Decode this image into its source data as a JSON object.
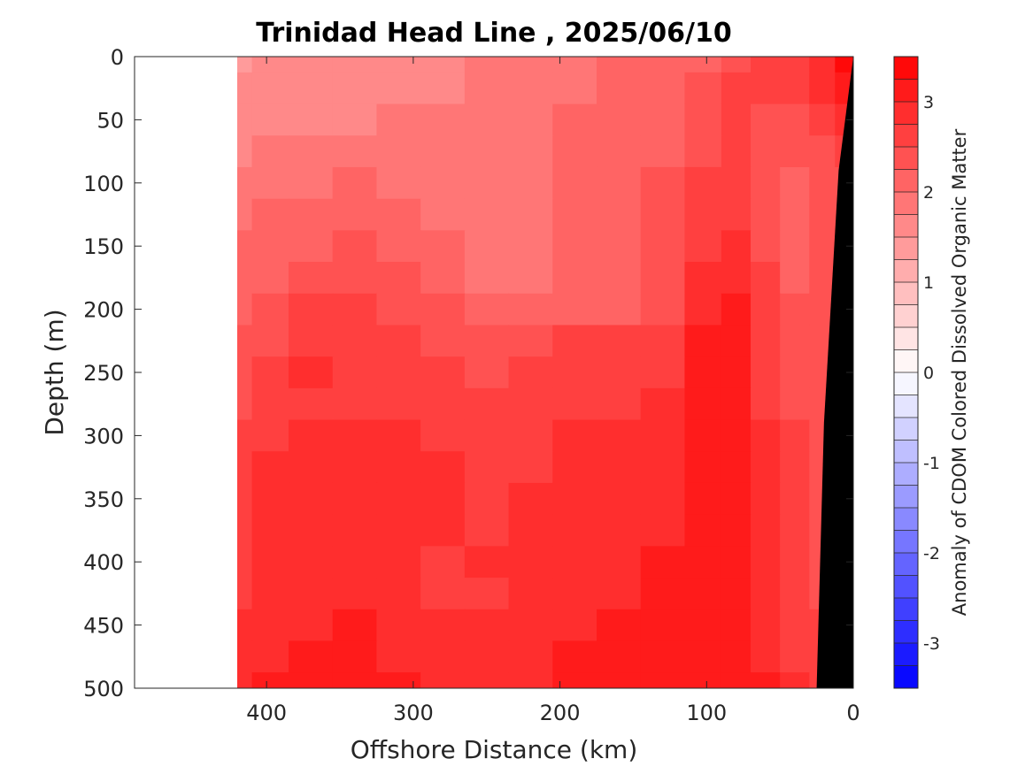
{
  "chart_data": {
    "type": "heatmap",
    "title": "Trinidad Head Line , 2025/06/10",
    "xlabel": "Offshore Distance (km)",
    "ylabel": "Depth (m)",
    "colorbar_label": "Anomaly of CDOM Colored Dissolved Organic Matter",
    "xlim": [
      490,
      0
    ],
    "ylim": [
      500,
      0
    ],
    "x_reversed": true,
    "y_reversed": true,
    "x_ticks": [
      400,
      300,
      200,
      100,
      0
    ],
    "x_tick_labels": [
      "400",
      "300",
      "200",
      "100",
      "0"
    ],
    "y_ticks": [
      0,
      50,
      100,
      150,
      200,
      250,
      300,
      350,
      400,
      450,
      500
    ],
    "y_tick_labels": [
      "0",
      "50",
      "100",
      "150",
      "200",
      "250",
      "300",
      "350",
      "400",
      "450",
      "500"
    ],
    "colorbar": {
      "range": [
        -3.5,
        3.5
      ],
      "step": 0.25,
      "ticks": [
        -3,
        -2,
        -1,
        0,
        1,
        2,
        3
      ],
      "tick_labels": [
        "-3",
        "-2",
        "-1",
        "0",
        "1",
        "2",
        "3"
      ],
      "min_color": "#0000ff",
      "mid_color": "#ffffff",
      "max_color": "#ff0000"
    },
    "data_extent_x": [
      420,
      0
    ],
    "bathymetry_color": "#000000",
    "bathymetry": [
      [
        0,
        0
      ],
      [
        10,
        90
      ],
      [
        20,
        290
      ],
      [
        25,
        500
      ],
      [
        0,
        500
      ]
    ],
    "x": [
      420,
      400,
      370,
      340,
      310,
      280,
      250,
      220,
      190,
      160,
      130,
      100,
      80,
      60,
      40,
      20,
      5
    ],
    "y": [
      0,
      25,
      50,
      75,
      100,
      125,
      150,
      175,
      200,
      225,
      250,
      275,
      300,
      325,
      350,
      375,
      400,
      425,
      450,
      475,
      500
    ],
    "values": [
      [
        1.4,
        1.5,
        1.6,
        1.7,
        1.7,
        1.7,
        1.8,
        1.9,
        1.9,
        2.0,
        2.0,
        2.2,
        2.4,
        2.5,
        2.6,
        2.9,
        3.3
      ],
      [
        1.5,
        1.6,
        1.6,
        1.7,
        1.7,
        1.7,
        1.8,
        1.9,
        1.9,
        2.0,
        2.1,
        2.3,
        2.7,
        2.5,
        2.5,
        2.8,
        3.0
      ],
      [
        1.6,
        1.7,
        1.7,
        1.7,
        1.8,
        1.8,
        1.8,
        1.9,
        2.0,
        2.0,
        2.1,
        2.4,
        2.5,
        2.4,
        2.4,
        2.6,
        2.8
      ],
      [
        1.7,
        1.8,
        1.8,
        1.9,
        1.8,
        1.8,
        1.8,
        1.9,
        2.0,
        2.1,
        2.2,
        2.4,
        2.5,
        2.3,
        2.3,
        2.4,
        2.6
      ],
      [
        1.8,
        1.9,
        1.9,
        2.0,
        1.9,
        1.8,
        1.8,
        1.9,
        2.0,
        2.1,
        2.3,
        2.5,
        2.5,
        2.3,
        2.2,
        2.3,
        2.4
      ],
      [
        1.9,
        2.0,
        2.0,
        2.1,
        2.0,
        1.9,
        1.8,
        1.9,
        2.0,
        2.1,
        2.3,
        2.6,
        2.6,
        2.3,
        2.2,
        2.3,
        2.3
      ],
      [
        2.0,
        2.1,
        2.2,
        2.3,
        2.1,
        2.0,
        1.9,
        1.9,
        2.0,
        2.1,
        2.3,
        2.7,
        2.8,
        2.4,
        2.2,
        2.3,
        2.3
      ],
      [
        2.1,
        2.2,
        2.4,
        2.4,
        2.3,
        2.1,
        1.9,
        1.9,
        2.0,
        2.1,
        2.3,
        2.8,
        2.9,
        2.5,
        2.2,
        2.3,
        2.3
      ],
      [
        2.2,
        2.3,
        2.5,
        2.5,
        2.4,
        2.3,
        2.1,
        2.1,
        2.2,
        2.2,
        2.4,
        2.9,
        3.0,
        2.5,
        2.3,
        2.3,
        2.3
      ],
      [
        2.3,
        2.4,
        2.6,
        2.6,
        2.5,
        2.4,
        2.3,
        2.4,
        2.5,
        2.5,
        2.6,
        3.0,
        3.0,
        2.6,
        2.3,
        2.3,
        2.3
      ],
      [
        2.3,
        2.5,
        2.8,
        2.7,
        2.6,
        2.5,
        2.4,
        2.5,
        2.7,
        2.7,
        2.7,
        3.0,
        3.0,
        2.6,
        2.3,
        2.3,
        2.3
      ],
      [
        2.4,
        2.6,
        2.7,
        2.7,
        2.7,
        2.6,
        2.5,
        2.6,
        2.7,
        2.7,
        2.8,
        3.0,
        3.0,
        2.7,
        2.4,
        2.3,
        2.3
      ],
      [
        2.5,
        2.7,
        2.8,
        2.8,
        2.8,
        2.7,
        2.6,
        2.6,
        2.8,
        2.8,
        2.8,
        3.0,
        3.1,
        2.8,
        2.5,
        2.3,
        2.3
      ],
      [
        2.6,
        2.8,
        2.9,
        2.8,
        2.8,
        2.8,
        2.7,
        2.7,
        2.8,
        2.8,
        2.9,
        3.1,
        3.1,
        2.8,
        2.5,
        2.3,
        2.3
      ],
      [
        2.6,
        2.8,
        2.9,
        2.9,
        2.9,
        2.8,
        2.7,
        2.8,
        2.9,
        2.9,
        2.9,
        3.1,
        3.2,
        2.9,
        2.5,
        2.3,
        2.3
      ],
      [
        2.7,
        2.9,
        2.9,
        2.9,
        2.8,
        2.8,
        2.7,
        2.8,
        2.9,
        2.9,
        2.9,
        3.1,
        3.2,
        2.9,
        2.6,
        2.4,
        2.3
      ],
      [
        2.7,
        2.9,
        2.9,
        2.9,
        2.8,
        2.7,
        2.8,
        2.8,
        2.9,
        2.9,
        3.0,
        3.1,
        3.2,
        2.9,
        2.6,
        2.4,
        2.3
      ],
      [
        2.7,
        2.9,
        2.9,
        2.9,
        2.8,
        2.7,
        2.7,
        2.8,
        2.9,
        2.9,
        3.0,
        3.1,
        3.1,
        2.9,
        2.6,
        2.4,
        2.3
      ],
      [
        2.8,
        2.9,
        2.9,
        3.0,
        2.9,
        2.8,
        2.8,
        2.8,
        2.9,
        3.0,
        3.0,
        3.1,
        3.1,
        2.9,
        2.7,
        2.5,
        2.3
      ],
      [
        2.8,
        2.9,
        3.0,
        3.0,
        2.9,
        2.8,
        2.9,
        2.9,
        3.0,
        3.0,
        3.0,
        3.1,
        3.1,
        2.9,
        2.7,
        2.5,
        2.3
      ],
      [
        2.8,
        3.0,
        3.0,
        3.0,
        3.0,
        2.9,
        2.9,
        2.9,
        3.0,
        3.0,
        3.0,
        3.1,
        3.1,
        3.0,
        2.8,
        2.6,
        2.3
      ]
    ]
  }
}
